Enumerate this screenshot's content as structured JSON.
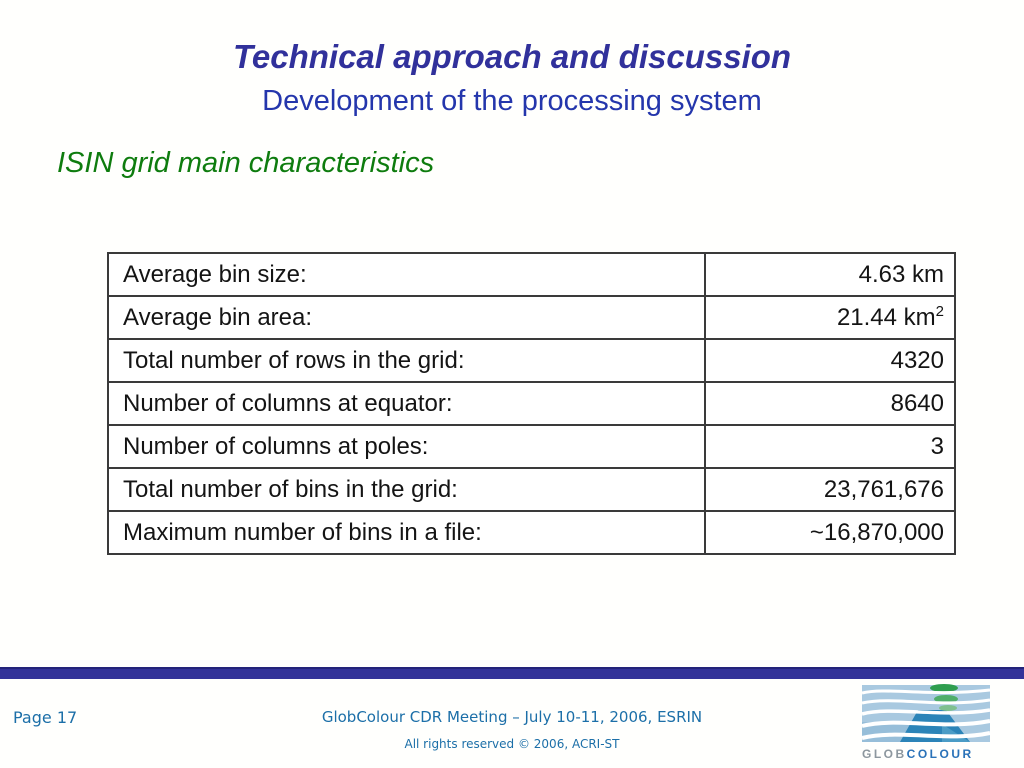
{
  "slide": {
    "title": "Technical approach and discussion",
    "subtitle": "Development of the processing system",
    "section_heading": "ISIN grid main characteristics"
  },
  "table": {
    "rows": [
      {
        "label": "Average bin size:",
        "value": "4.63 km",
        "sup": ""
      },
      {
        "label": "Average bin area:",
        "value": "21.44 km",
        "sup": "2"
      },
      {
        "label": "Total number of rows in the grid:",
        "value": "4320",
        "sup": ""
      },
      {
        "label": "Number of columns at equator:",
        "value": "8640",
        "sup": ""
      },
      {
        "label": "Number of columns at poles:",
        "value": "3",
        "sup": ""
      },
      {
        "label": "Total number of bins in the grid:",
        "value": "23,761,676",
        "sup": ""
      },
      {
        "label": "Maximum number of bins in a file:",
        "value": "~16,870,000",
        "sup": ""
      }
    ]
  },
  "footer": {
    "page_label": "Page 17",
    "meeting_label": "GlobColour CDR Meeting – July 10-11, 2006, ESRIN",
    "rights_label": "All rights reserved © 2006, ACRI-ST",
    "logo_text_glob": "GLOB",
    "logo_text_colour": "COLOUR"
  },
  "colors": {
    "title_indigo": "#31319b",
    "subtitle_blue": "#2436ac",
    "heading_green": "#0e7c0e",
    "footer_blue": "#1c6fa8",
    "divider_bar": "#333399",
    "table_border": "#3a3a3a"
  }
}
